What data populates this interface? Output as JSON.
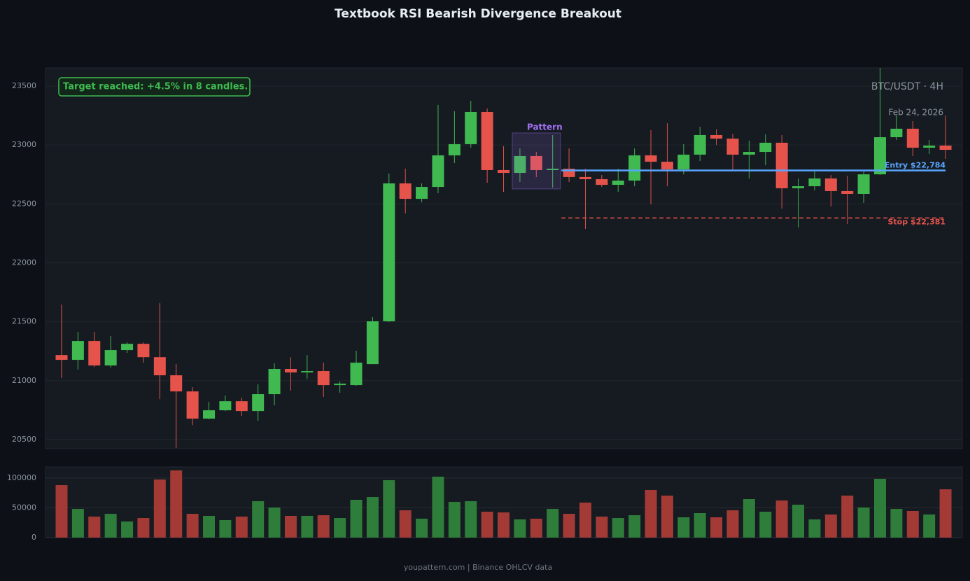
{
  "chart_data": [
    {
      "type": "candlestick",
      "title": "Textbook RSI Bearish Divergence Breakout",
      "symbol": "BTC/USDT · 4H",
      "date": "Feb 24, 2026",
      "annotation": "Target reached: +4.5% in 8 candles.",
      "footer": "youpattern.com | Binance OHLCV data",
      "up_color": "#3fb950",
      "down_color": "#e5534b",
      "open": [
        21218,
        21177,
        21337,
        21129,
        21260,
        21313,
        21200,
        21046,
        20909,
        20678,
        20749,
        20826,
        20743,
        20886,
        21100,
        21070,
        21082,
        20963,
        20963,
        21141,
        21504,
        22674,
        22543,
        22644,
        22912,
        23007,
        23280,
        22787,
        22763,
        22906,
        22787,
        22799,
        22728,
        22710,
        22662,
        22698,
        22912,
        22858,
        22793,
        22918,
        23084,
        23054,
        22918,
        22941,
        23019,
        22633,
        22650,
        22716,
        22609,
        22585,
        22751,
        23066,
        23138,
        22977,
        22995
      ],
      "high": [
        21646,
        21414,
        21414,
        21379,
        21325,
        21325,
        21658,
        21141,
        20945,
        20820,
        20874,
        20856,
        20969,
        21147,
        21200,
        21218,
        21153,
        20993,
        21254,
        21539,
        22757,
        22799,
        22674,
        23340,
        23286,
        23375,
        23310,
        22989,
        22971,
        22941,
        23084,
        22971,
        22799,
        22745,
        22799,
        22971,
        23126,
        23185,
        23007,
        23155,
        23132,
        23096,
        23037,
        23090,
        23084,
        22716,
        22775,
        22745,
        22739,
        22775,
        23654,
        23250,
        23203,
        23042,
        23250
      ],
      "low": [
        21022,
        21094,
        21117,
        21111,
        21236,
        21153,
        20844,
        20430,
        20624,
        20672,
        20743,
        20701,
        20660,
        20791,
        20915,
        21016,
        20862,
        20898,
        20957,
        21141,
        21498,
        22419,
        22514,
        22591,
        22846,
        22977,
        22680,
        22603,
        22686,
        22727,
        22638,
        22686,
        22288,
        22644,
        22603,
        22650,
        22496,
        22650,
        22751,
        22864,
        23001,
        22781,
        22716,
        22829,
        22460,
        22300,
        22615,
        22478,
        22329,
        22508,
        22745,
        23042,
        22906,
        22924,
        22882
      ],
      "close": [
        21177,
        21337,
        21129,
        21260,
        21313,
        21200,
        21046,
        20909,
        20678,
        20749,
        20826,
        20743,
        20886,
        21100,
        21070,
        21082,
        20963,
        20975,
        21153,
        21504,
        22674,
        22543,
        22644,
        22912,
        23007,
        23280,
        22787,
        22763,
        22906,
        22787,
        22799,
        22728,
        22710,
        22662,
        22698,
        22912,
        22858,
        22793,
        22918,
        23084,
        23054,
        22918,
        22941,
        23019,
        22633,
        22650,
        22716,
        22609,
        22585,
        22751,
        23066,
        23138,
        22977,
        22995,
        22959
      ],
      "ylim": [
        20423,
        23654
      ],
      "yticks": [
        20500,
        21000,
        21500,
        22000,
        22500,
        23000,
        23500
      ],
      "grid": true,
      "pattern": {
        "label": "Pattern",
        "start": 28,
        "end": 30,
        "high": 23102,
        "low": 22627,
        "color": "#a371f7"
      },
      "levels": [
        {
          "label": "Entry $22,784",
          "value": 22784,
          "from": 31,
          "color": "#58a6ff",
          "style": "solid"
        },
        {
          "label": "Stop $22,381",
          "value": 22381,
          "from": 31,
          "color": "#e5534b",
          "style": "dashed"
        }
      ]
    },
    {
      "type": "bar",
      "values": [
        88200,
        48200,
        35300,
        40000,
        27100,
        32900,
        97600,
        112900,
        40000,
        36500,
        29400,
        35300,
        61200,
        50600,
        36500,
        36500,
        37600,
        32900,
        63500,
        68200,
        96500,
        45900,
        31800,
        102400,
        60000,
        61200,
        43500,
        42400,
        30600,
        31800,
        48200,
        40000,
        58800,
        35300,
        32900,
        37600,
        80000,
        70600,
        34100,
        41200,
        34100,
        45900,
        64700,
        43500,
        62400,
        55300,
        30600,
        38800,
        70600,
        50600,
        98800,
        48200,
        44700,
        38800,
        81200
      ],
      "up_color": "#2e7d3a",
      "down_color": "#a33a36",
      "ylim": [
        0,
        118800
      ],
      "yticks": [
        0,
        50000,
        100000
      ],
      "grid": true
    }
  ]
}
